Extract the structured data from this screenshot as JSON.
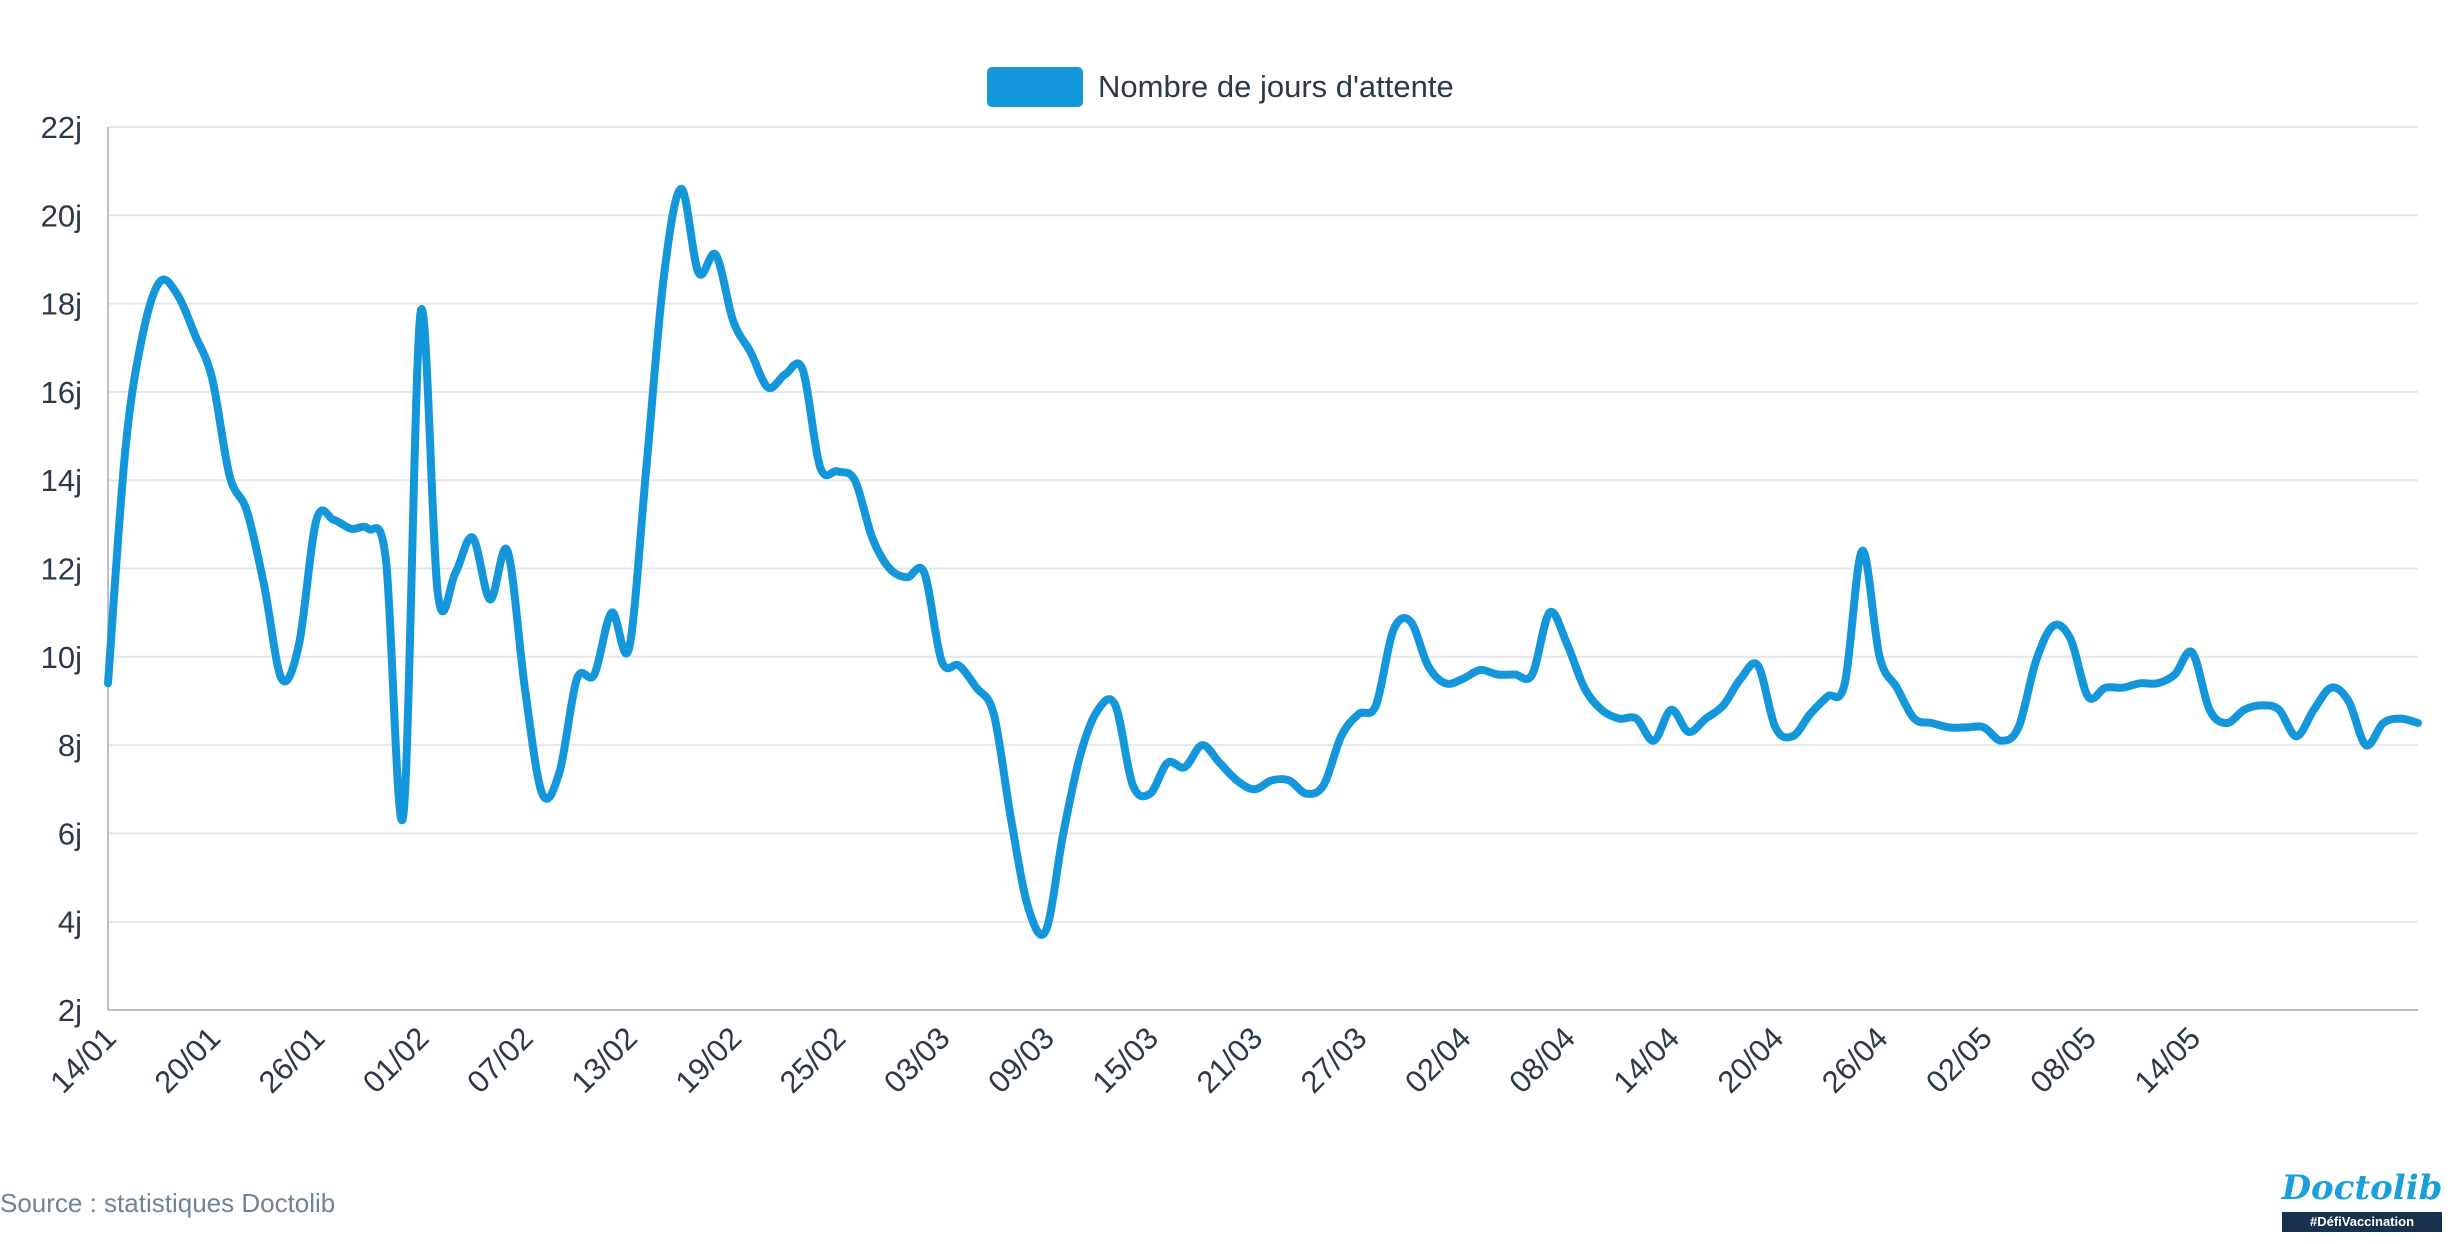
{
  "legend": {
    "label": "Nombre de jours d'attente",
    "color": "#1397da"
  },
  "source": "Source : statistiques Doctolib",
  "logo": {
    "wordmark": "Doctolib",
    "tag": "#DéfiVaccination"
  },
  "colors": {
    "line": "#1397da",
    "grid": "#e4e7ea",
    "axis_text": "#2b3a4a"
  },
  "chart_data": {
    "type": "line",
    "title": "",
    "xlabel": "",
    "ylabel": "",
    "ylim": [
      2,
      22
    ],
    "y_ticks": [
      2,
      4,
      6,
      8,
      10,
      12,
      14,
      16,
      18,
      20,
      22
    ],
    "y_tick_labels": [
      "2j",
      "4j",
      "6j",
      "8j",
      "10j",
      "12j",
      "14j",
      "16j",
      "18j",
      "20j",
      "22j"
    ],
    "x_start": "14/01",
    "x_tick_labels": [
      "14/01",
      "20/01",
      "26/01",
      "01/02",
      "07/02",
      "13/02",
      "19/02",
      "25/02",
      "03/03",
      "09/03",
      "15/03",
      "21/03",
      "27/03",
      "02/04",
      "08/04",
      "14/04",
      "20/04",
      "26/04",
      "02/05",
      "08/05",
      "14/05"
    ],
    "grid": true,
    "legend_position": "top-center",
    "series": [
      {
        "name": "Nombre de jours d'attente",
        "values": [
          9.4,
          14.7,
          17.3,
          18.5,
          18.2,
          17.3,
          16.3,
          14.1,
          13.3,
          11.6,
          9.5,
          10.3,
          13.1,
          13.1,
          12.9,
          12.9,
          12.2,
          6.4,
          17.8,
          11.4,
          11.9,
          12.7,
          11.3,
          12.4,
          9.3,
          6.9,
          7.4,
          9.5,
          9.6,
          11.0,
          10.2,
          14.3,
          18.6,
          20.6,
          18.7,
          19.1,
          17.6,
          16.9,
          16.1,
          16.4,
          16.5,
          14.3,
          14.2,
          14.0,
          12.7,
          12.0,
          11.8,
          11.9,
          9.9,
          9.8,
          9.3,
          8.7,
          6.3,
          4.3,
          3.8,
          6.0,
          7.8,
          8.8,
          8.9,
          7.1,
          6.9,
          7.6,
          7.5,
          8.0,
          7.6,
          7.2,
          7.0,
          7.2,
          7.2,
          6.9,
          7.1,
          8.2,
          8.7,
          8.9,
          10.6,
          10.8,
          9.8,
          9.4,
          9.5,
          9.7,
          9.6,
          9.6,
          9.6,
          11.0,
          10.3,
          9.3,
          8.8,
          8.6,
          8.6,
          8.1,
          8.8,
          8.3,
          8.6,
          8.9,
          9.5,
          9.8,
          8.4,
          8.2,
          8.7,
          9.1,
          9.4,
          12.4,
          10.0,
          9.3,
          8.6,
          8.5,
          8.4,
          8.4,
          8.4,
          8.1,
          8.4,
          9.9,
          10.7,
          10.4,
          9.1,
          9.3,
          9.3,
          9.4,
          9.4,
          9.6,
          10.1,
          8.8,
          8.5,
          8.8,
          8.9,
          8.8,
          8.2,
          8.8,
          9.3,
          9.0,
          8.0,
          8.5,
          8.6,
          8.5
        ]
      }
    ]
  }
}
